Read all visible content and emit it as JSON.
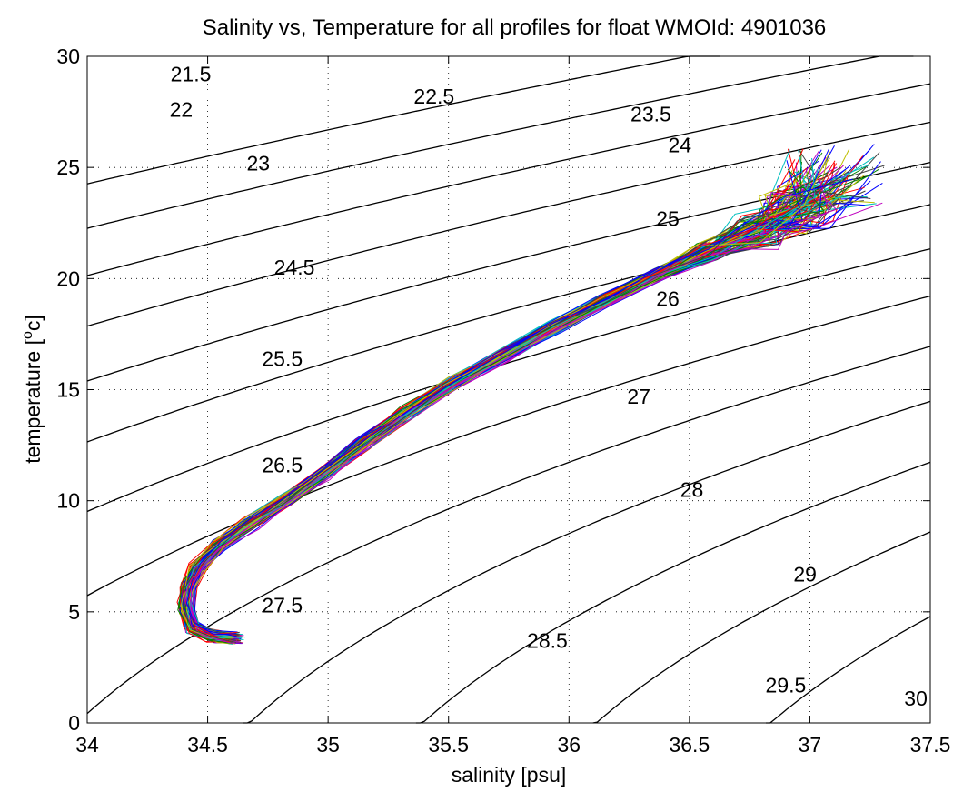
{
  "chart_data": {
    "type": "line",
    "title": "Salinity vs, Temperature for all profiles for float WMOId: 4901036",
    "xlabel": "salinity [psu]",
    "ylabel_main": "temperature [",
    "ylabel_sup": "o",
    "ylabel_tail": "c]",
    "xlim": [
      34,
      37.5
    ],
    "ylim": [
      0,
      30
    ],
    "xticks": [
      34,
      34.5,
      35,
      35.5,
      36,
      36.5,
      37,
      37.5
    ],
    "xtick_labels": [
      "34",
      "34.5",
      "35",
      "35.5",
      "36",
      "36.5",
      "37",
      "37.5"
    ],
    "yticks": [
      0,
      5,
      10,
      15,
      20,
      25,
      30
    ],
    "ytick_labels": [
      "0",
      "5",
      "10",
      "15",
      "20",
      "25",
      "30"
    ],
    "grid": true,
    "density_contours": {
      "levels": [
        21.5,
        22,
        22.5,
        23,
        23.5,
        24,
        24.5,
        25,
        25.5,
        26,
        26.5,
        27,
        27.5,
        28,
        28.5,
        29,
        29.5,
        30
      ],
      "labels": [
        {
          "text": "21.5",
          "s": 34.43,
          "t": 29.2
        },
        {
          "text": "22",
          "s": 34.39,
          "t": 27.6
        },
        {
          "text": "22.5",
          "s": 35.44,
          "t": 28.2
        },
        {
          "text": "23",
          "s": 34.71,
          "t": 25.2
        },
        {
          "text": "23.5",
          "s": 36.34,
          "t": 27.4
        },
        {
          "text": "24",
          "s": 36.46,
          "t": 26.0
        },
        {
          "text": "24.5",
          "s": 34.86,
          "t": 20.5
        },
        {
          "text": "25",
          "s": 36.41,
          "t": 22.7
        },
        {
          "text": "25.5",
          "s": 34.81,
          "t": 16.4
        },
        {
          "text": "26",
          "s": 36.41,
          "t": 19.1
        },
        {
          "text": "26.5",
          "s": 34.81,
          "t": 11.6
        },
        {
          "text": "27",
          "s": 36.29,
          "t": 14.7
        },
        {
          "text": "27.5",
          "s": 34.81,
          "t": 5.3
        },
        {
          "text": "28",
          "s": 36.51,
          "t": 10.5
        },
        {
          "text": "28.5",
          "s": 35.91,
          "t": 3.7
        },
        {
          "text": "29",
          "s": 36.98,
          "t": 6.7
        },
        {
          "text": "29.5",
          "s": 36.9,
          "t": 1.7
        },
        {
          "text": "30",
          "s": 37.44,
          "t": 1.1
        }
      ]
    },
    "profile_colors": [
      "#0000ff",
      "#008000",
      "#ff0000",
      "#00bfbf",
      "#bf00bf",
      "#bfbf00",
      "#404040"
    ],
    "mean_profile": {
      "salinity": [
        34.62,
        34.52,
        34.44,
        34.41,
        34.42,
        34.46,
        34.55,
        34.68,
        34.82,
        34.98,
        35.15,
        35.33,
        35.52,
        35.72,
        35.94,
        36.15,
        36.37,
        36.58,
        36.78,
        36.95,
        37.1
      ],
      "temperature": [
        3.8,
        3.9,
        4.3,
        5.2,
        6.1,
        7.0,
        8.0,
        9.0,
        10.0,
        11.2,
        12.6,
        14.0,
        15.3,
        16.5,
        17.8,
        19.0,
        20.2,
        21.2,
        22.1,
        23.1,
        24.6
      ]
    },
    "profile_count": 120
  }
}
